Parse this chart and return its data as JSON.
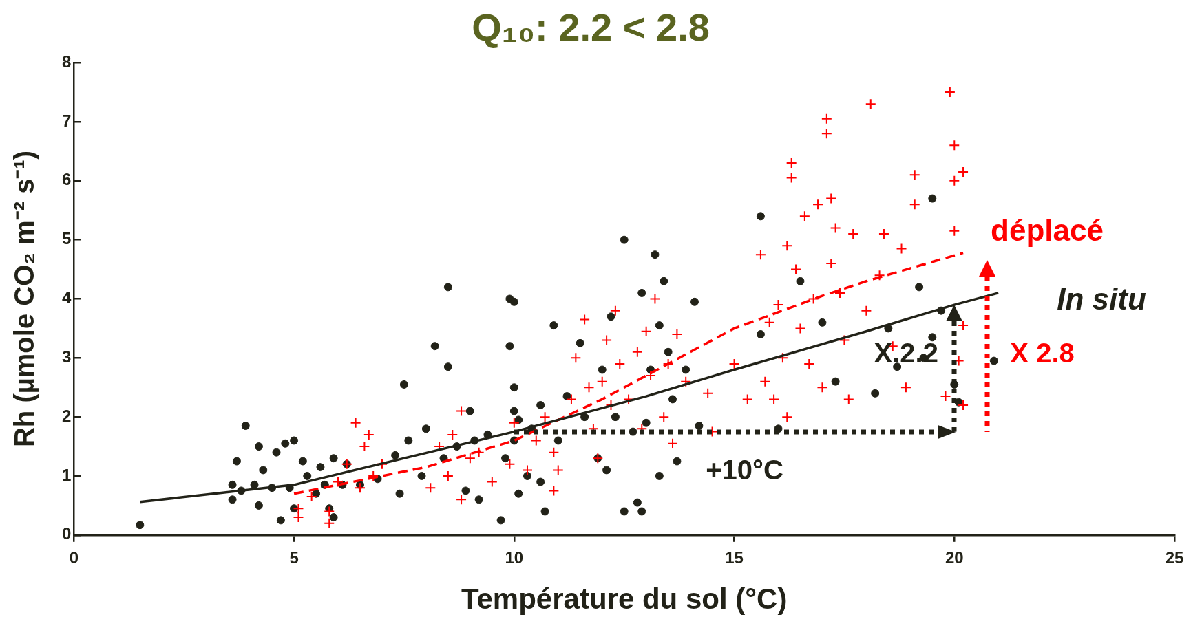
{
  "chart_data": {
    "type": "scatter",
    "title": "Q₁₀: 2.2 < 2.8",
    "xlabel": "Température du sol (°C)",
    "ylabel": "Rh (µmole CO₂ m⁻² s⁻¹)",
    "xlim": [
      0,
      25
    ],
    "xticks": [
      0,
      5,
      10,
      15,
      20,
      25
    ],
    "ylim": [
      0,
      8
    ],
    "yticks": [
      0,
      1,
      2,
      3,
      4,
      5,
      6,
      7,
      8
    ],
    "grid": false,
    "legend": false,
    "series": [
      {
        "color": "#222218",
        "marker": "circle",
        "x": [
          1.5,
          3.6,
          3.6,
          3.7,
          3.8,
          3.9,
          4.1,
          4.2,
          4.2,
          4.3,
          4.5,
          4.6,
          4.7,
          4.8,
          4.9,
          5.0,
          5.0,
          5.2,
          5.3,
          5.5,
          5.6,
          5.7,
          5.8,
          5.9,
          5.9,
          6.1,
          6.2,
          6.5,
          6.9,
          7.3,
          7.4,
          7.5,
          7.6,
          7.9,
          8.0,
          8.2,
          8.4,
          8.5,
          8.5,
          8.7,
          8.9,
          9.0,
          9.1,
          9.2,
          9.4,
          9.7,
          9.8,
          9.9,
          9.9,
          10.0,
          10.0,
          10.0,
          10.0,
          10.1,
          10.1,
          10.3,
          10.4,
          10.6,
          10.6,
          10.7,
          10.9,
          11.0,
          11.2,
          11.5,
          11.6,
          11.9,
          12.0,
          12.1,
          12.2,
          12.3,
          12.5,
          12.5,
          12.7,
          12.8,
          12.9,
          12.9,
          13.0,
          13.1,
          13.2,
          13.3,
          13.3,
          13.4,
          13.5,
          13.6,
          13.7,
          13.9,
          14.1,
          14.2,
          15.6,
          15.6,
          16.0,
          16.5,
          17.0,
          17.3,
          18.2,
          18.5,
          18.7,
          19.2,
          19.3,
          19.5,
          19.5,
          19.7,
          20.0,
          20.1,
          20.9
        ],
        "values": [
          0.17,
          0.6,
          0.85,
          1.25,
          0.75,
          1.85,
          0.85,
          1.5,
          0.5,
          1.1,
          0.8,
          1.4,
          0.25,
          1.55,
          0.8,
          1.6,
          0.45,
          1.25,
          1.0,
          0.7,
          1.15,
          0.85,
          0.45,
          0.3,
          1.3,
          0.85,
          1.2,
          0.85,
          0.95,
          1.35,
          0.7,
          2.55,
          1.6,
          1.0,
          1.8,
          3.2,
          1.3,
          4.2,
          2.85,
          1.5,
          0.75,
          2.1,
          1.6,
          0.6,
          1.7,
          0.25,
          1.3,
          3.2,
          4.0,
          3.95,
          2.5,
          2.1,
          1.6,
          0.7,
          1.95,
          1.0,
          1.8,
          0.9,
          2.2,
          0.4,
          3.55,
          1.6,
          2.35,
          3.25,
          2.0,
          1.3,
          2.8,
          1.1,
          3.7,
          2.0,
          5.0,
          0.4,
          1.75,
          0.55,
          0.4,
          4.1,
          1.9,
          2.8,
          4.75,
          1.0,
          3.55,
          4.3,
          3.1,
          2.3,
          1.25,
          2.8,
          3.95,
          1.85,
          5.4,
          3.4,
          1.8,
          4.3,
          3.6,
          2.6,
          2.4,
          3.5,
          2.85,
          4.2,
          3.0,
          3.35,
          5.7,
          3.8,
          2.55,
          2.25,
          2.95
        ]
      },
      {
        "color": "#ff0000",
        "marker": "cross",
        "x": [
          5.1,
          5.1,
          5.4,
          5.8,
          5.8,
          6.0,
          6.2,
          6.4,
          6.5,
          6.6,
          6.7,
          6.8,
          7.0,
          8.1,
          8.3,
          8.5,
          8.6,
          8.8,
          8.8,
          9.0,
          9.2,
          9.5,
          9.9,
          10.0,
          10.3,
          10.5,
          10.7,
          10.9,
          10.9,
          11.0,
          11.3,
          11.4,
          11.6,
          11.7,
          11.8,
          11.9,
          12.0,
          12.1,
          12.2,
          12.3,
          12.4,
          12.6,
          12.8,
          12.9,
          13.0,
          13.1,
          13.2,
          13.4,
          13.5,
          13.6,
          13.7,
          13.9,
          14.4,
          14.5,
          15.0,
          15.3,
          15.6,
          15.7,
          15.8,
          15.9,
          16.0,
          16.1,
          16.2,
          16.2,
          16.3,
          16.3,
          16.4,
          16.5,
          16.6,
          16.7,
          16.8,
          16.9,
          17.0,
          17.1,
          17.1,
          17.2,
          17.2,
          17.3,
          17.4,
          17.5,
          17.6,
          17.7,
          18.0,
          18.1,
          18.3,
          18.4,
          18.6,
          18.8,
          18.9,
          19.1,
          19.1,
          19.8,
          19.9,
          20.0,
          20.0,
          20.0,
          20.1,
          20.2,
          20.2,
          20.2
        ],
        "values": [
          0.3,
          0.45,
          0.65,
          0.2,
          0.4,
          0.9,
          1.2,
          1.9,
          0.8,
          1.5,
          1.7,
          1.0,
          1.2,
          0.8,
          1.5,
          1.0,
          1.7,
          0.6,
          2.1,
          1.3,
          1.4,
          0.9,
          1.2,
          1.9,
          1.1,
          1.6,
          2.0,
          1.4,
          0.75,
          1.1,
          2.3,
          3.0,
          3.65,
          2.5,
          1.8,
          1.3,
          2.6,
          3.3,
          2.2,
          3.8,
          2.9,
          2.3,
          3.1,
          1.8,
          3.45,
          2.7,
          4.0,
          2.0,
          2.9,
          1.55,
          3.4,
          2.6,
          2.4,
          1.75,
          2.9,
          2.3,
          4.75,
          2.6,
          3.6,
          2.3,
          3.9,
          3.0,
          4.9,
          2.0,
          6.3,
          6.05,
          4.5,
          3.5,
          5.4,
          2.9,
          4.0,
          5.6,
          2.5,
          7.05,
          6.8,
          5.7,
          4.6,
          5.2,
          4.1,
          3.3,
          2.3,
          5.1,
          3.8,
          7.3,
          4.4,
          5.1,
          3.2,
          4.85,
          2.5,
          6.1,
          5.6,
          2.35,
          7.5,
          5.15,
          6.6,
          6.0,
          2.95,
          6.15,
          3.55,
          2.2
        ]
      },
      {
        "type": "line",
        "name": "In situ",
        "color": "#222218",
        "marker": "none",
        "line_style": "solid",
        "x": [
          1.5,
          5,
          10,
          13,
          15,
          18,
          20,
          21
        ],
        "values": [
          0.56,
          0.85,
          1.75,
          2.35,
          2.8,
          3.45,
          3.9,
          4.1
        ]
      },
      {
        "type": "line",
        "name": "déplacé",
        "color": "#ff0000",
        "marker": "none",
        "line_style": "dashed",
        "x": [
          5,
          8,
          10,
          12,
          15,
          17,
          18,
          20.2
        ],
        "values": [
          0.7,
          1.15,
          1.6,
          2.3,
          3.5,
          4.05,
          4.3,
          4.78
        ]
      }
    ],
    "annotations": [
      "X.2.2",
      "X 2.8",
      "+10°C"
    ]
  }
}
